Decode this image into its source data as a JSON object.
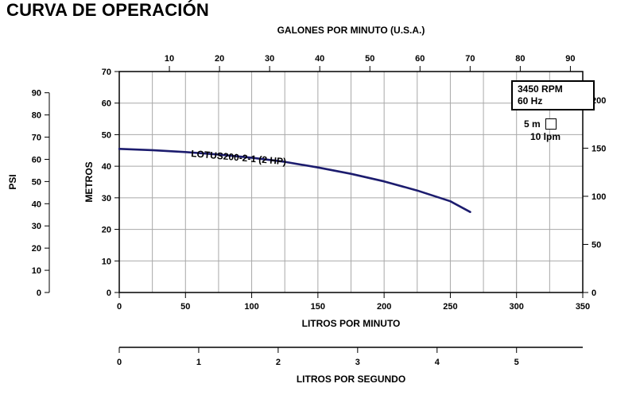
{
  "title": "CURVA DE OPERACIÓN",
  "colors": {
    "curve": "#1c1c6e",
    "grid": "#a8a8a8",
    "axis": "#000000",
    "background": "#ffffff"
  },
  "chart_data": {
    "type": "line",
    "title": "CURVA DE OPERACIÓN",
    "series": [
      {
        "name": "LOTUS200-2-1 (2 HP)",
        "x_lpm": [
          0,
          25,
          50,
          75,
          100,
          125,
          150,
          175,
          200,
          225,
          250,
          265
        ],
        "y_m": [
          45.5,
          45.1,
          44.5,
          43.7,
          42.7,
          41.4,
          39.6,
          37.6,
          35.2,
          32.3,
          28.9,
          25.5
        ]
      }
    ],
    "axes": {
      "top": {
        "label": "GALONES POR MINUTO (U.S.A.)",
        "ticks": [
          10,
          20,
          30,
          40,
          50,
          60,
          70,
          80,
          90
        ],
        "lpm_per_gpm": 3.785
      },
      "bottom": {
        "label": "LITROS POR MINUTO",
        "ticks": [
          0,
          50,
          100,
          150,
          200,
          250,
          300,
          350
        ],
        "range": [
          0,
          350
        ]
      },
      "bottom2": {
        "label": "LITROS POR SEGUNDO",
        "ticks": [
          0,
          1,
          2,
          3,
          4,
          5
        ],
        "lpm_per_lps": 60
      },
      "left_inner": {
        "label": "METROS",
        "ticks": [
          0,
          10,
          20,
          30,
          40,
          50,
          60,
          70
        ],
        "range": [
          0,
          70
        ]
      },
      "left_outer": {
        "label": "PSI",
        "ticks": [
          0,
          10,
          20,
          30,
          40,
          50,
          60,
          70,
          80,
          90
        ],
        "m_per_psi": 0.7031
      },
      "right": {
        "ticks": [
          0,
          50,
          100,
          150,
          200
        ],
        "m_per_ft": 0.3048
      }
    },
    "grid": {
      "x_step_lpm": 25,
      "y_step_m": 10,
      "x_range_lpm": [
        0,
        350
      ],
      "y_range_m": [
        0,
        70
      ]
    },
    "annotations": {
      "info_box": [
        "3450 RPM",
        "60 Hz"
      ],
      "scale_note": [
        "5 m",
        "10 lpm"
      ]
    }
  }
}
